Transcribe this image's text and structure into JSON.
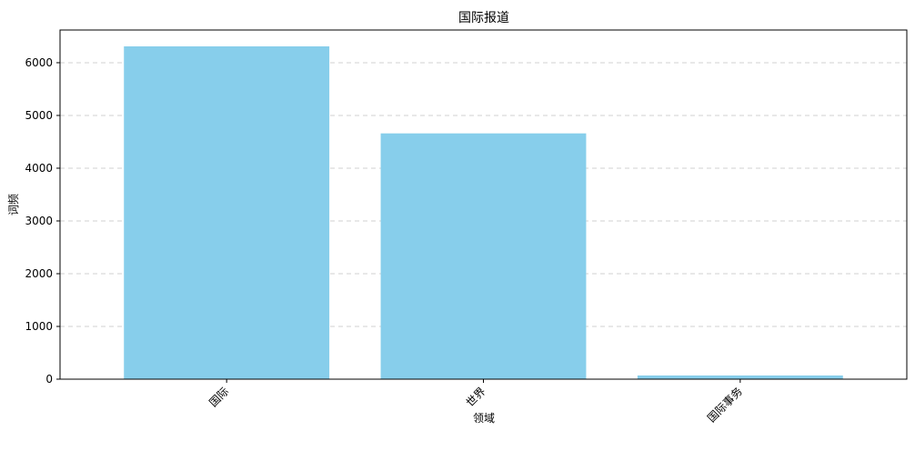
{
  "chart_data": {
    "type": "bar",
    "title": "国际报道",
    "xlabel": "领域",
    "ylabel": "词频",
    "categories": [
      "国际",
      "世界",
      "国际事务"
    ],
    "values": [
      6310,
      4660,
      70
    ],
    "ylim": [
      0,
      6620
    ],
    "yticks": [
      0,
      1000,
      2000,
      3000,
      4000,
      5000,
      6000
    ],
    "bar_color": "#87CEEB",
    "grid": "y-axis dashed",
    "legend": "none"
  }
}
